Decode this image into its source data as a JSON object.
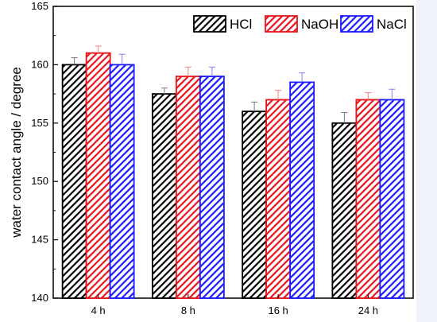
{
  "chart_data": {
    "type": "bar",
    "title": "",
    "xlabel": "",
    "ylabel": "water contact angle / degree",
    "ylim": [
      140,
      165
    ],
    "yticks": [
      140,
      145,
      150,
      155,
      160,
      165
    ],
    "categories": [
      "4 h",
      "8 h",
      "16 h",
      "24 h"
    ],
    "series": [
      {
        "name": "HCl",
        "color": "#000000",
        "values": [
          160.0,
          157.5,
          156.0,
          155.0
        ],
        "errors": [
          0.6,
          0.5,
          0.8,
          0.9
        ]
      },
      {
        "name": "NaOH",
        "color": "#e8141b",
        "values": [
          161.0,
          159.0,
          157.0,
          157.0
        ],
        "errors": [
          0.6,
          0.8,
          0.8,
          0.6
        ]
      },
      {
        "name": "NaCl",
        "color": "#1a1aff",
        "values": [
          160.0,
          159.0,
          158.5,
          157.0
        ],
        "errors": [
          0.9,
          0.8,
          0.8,
          0.9
        ]
      }
    ],
    "legend_position": "top-right",
    "grid": false,
    "bar_fill": "diagonal-hatch"
  }
}
